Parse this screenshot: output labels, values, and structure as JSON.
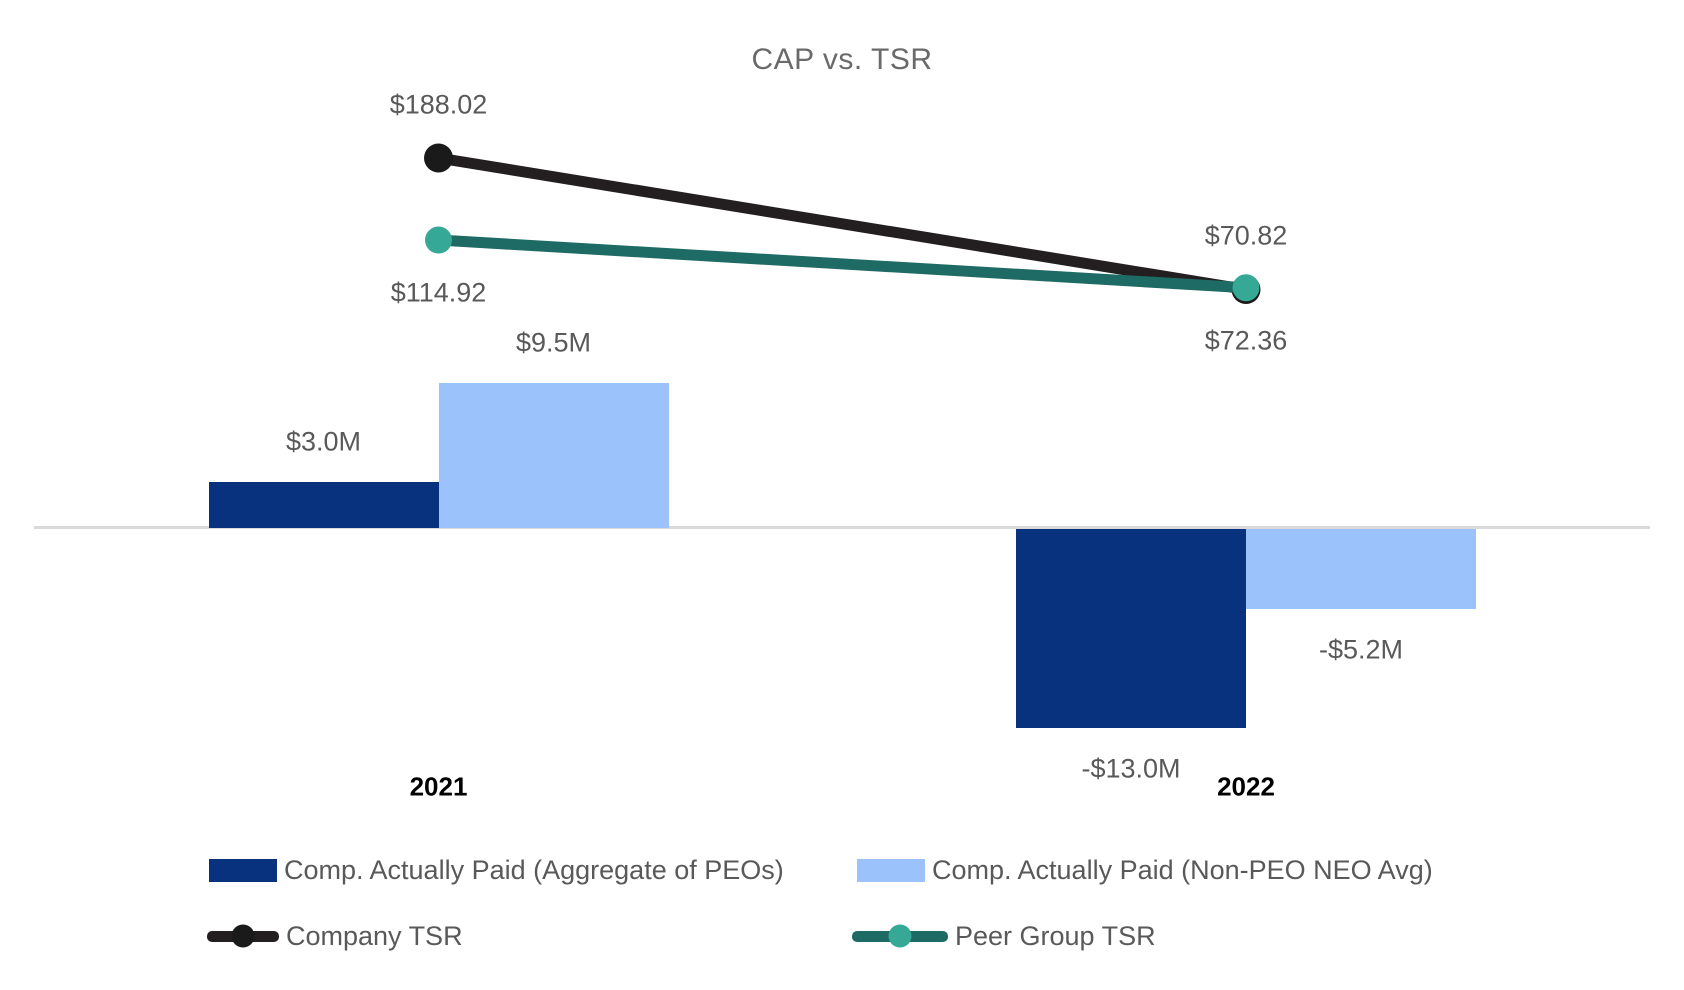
{
  "title": "CAP vs. TSR",
  "colors": {
    "background": "#ffffff",
    "axis_line": "#d9d9d9",
    "label_text": "#595959",
    "title_text": "#6a6a6a",
    "category_text": "#000000",
    "peo_bar": "#08327d",
    "non_peo_bar": "#9cc2fb",
    "company_tsr_line": "#231f20",
    "company_tsr_marker": "#1a1a1a",
    "peer_tsr_line": "#1e6a64",
    "peer_tsr_marker": "#35a896"
  },
  "chart_data": {
    "type": "combo",
    "subtypes": [
      "bar",
      "line"
    ],
    "title": "CAP vs. TSR",
    "categories": [
      "2021",
      "2022"
    ],
    "bar_series": [
      {
        "name": "Comp. Actually Paid (Aggregate of PEOs)",
        "unit": "$M",
        "values": [
          3.0,
          -13.0
        ],
        "labels": [
          "$3.0M",
          "-$13.0M"
        ],
        "color": "#08327d"
      },
      {
        "name": "Comp. Actually Paid (Non-PEO NEO Avg)",
        "unit": "$M",
        "values": [
          9.5,
          -5.2
        ],
        "labels": [
          "$9.5M",
          "-$5.2M"
        ],
        "color": "#9cc2fb"
      }
    ],
    "line_series": [
      {
        "name": "Company TSR",
        "unit": "$",
        "values": [
          188.02,
          70.82
        ],
        "labels": [
          "$188.02",
          "$70.82"
        ],
        "label_position": "above",
        "line_color": "#231f20",
        "marker_color": "#1a1a1a"
      },
      {
        "name": "Peer Group TSR",
        "unit": "$",
        "values": [
          114.92,
          72.36
        ],
        "labels": [
          "$114.92",
          "$72.36"
        ],
        "label_position": "below",
        "line_color": "#1e6a64",
        "marker_color": "#35a896"
      }
    ],
    "axes": {
      "x_tick_labels": [
        "2021",
        "2022"
      ],
      "y_axis_visible": false,
      "zero_line_visible": true,
      "gridlines": false,
      "bar_ylim_musd": [
        -14.5,
        10.5
      ],
      "line_ylim_usd": [
        0,
        210
      ]
    },
    "legend": {
      "position": "bottom",
      "rows": [
        [
          "Comp. Actually Paid (Aggregate of PEOs)",
          "Comp. Actually Paid (Non-PEO NEO Avg)"
        ],
        [
          "Company TSR",
          "Peer Group TSR"
        ]
      ]
    }
  }
}
